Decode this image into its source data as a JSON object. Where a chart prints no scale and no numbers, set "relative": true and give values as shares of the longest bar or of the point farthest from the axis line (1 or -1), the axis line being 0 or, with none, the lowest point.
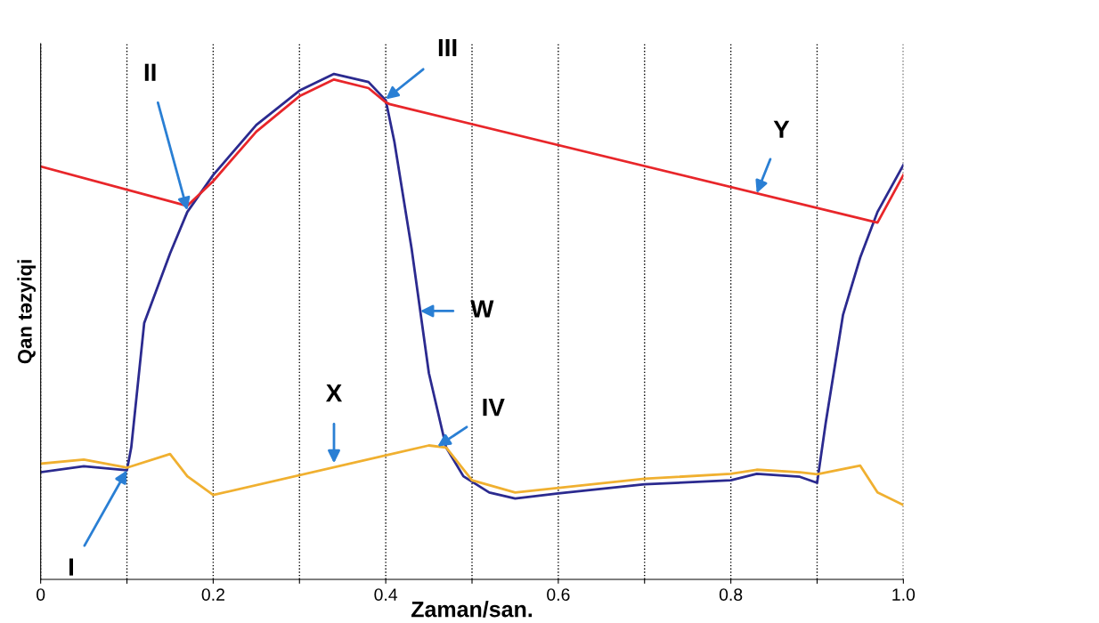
{
  "chart_data": {
    "type": "line",
    "relative": true,
    "xlabel": "Zaman/san.",
    "ylabel": "Qan təzyiqi",
    "xlim": [
      0,
      1.0
    ],
    "xticks": [
      0,
      {
        "value": 0.1,
        "label": null
      },
      0.2,
      {
        "value": 0.3,
        "label": null
      },
      0.4,
      {
        "value": 0.5,
        "label": null
      },
      0.6,
      {
        "value": 0.7,
        "label": null
      },
      0.8,
      {
        "value": 0.9,
        "label": null
      },
      {
        "value": 1.0,
        "label": "1.0"
      }
    ],
    "grid": "x",
    "legend": false,
    "marker": "none",
    "line_style": "solid",
    "series": [
      {
        "color": "#2b2a8f",
        "x": [
          0,
          0.05,
          0.1,
          0.105,
          0.12,
          0.15,
          0.17,
          0.2,
          0.25,
          0.3,
          0.34,
          0.38,
          0.4,
          0.41,
          0.43,
          0.45,
          0.47,
          0.49,
          0.52,
          0.55,
          0.6,
          0.7,
          0.8,
          0.83,
          0.88,
          0.9,
          0.91,
          0.93,
          0.95,
          0.97,
          1.0
        ],
        "values": [
          0.212,
          0.224,
          0.216,
          0.261,
          0.507,
          0.645,
          0.727,
          0.8,
          0.899,
          0.967,
          1.0,
          0.984,
          0.948,
          0.866,
          0.654,
          0.408,
          0.261,
          0.204,
          0.172,
          0.16,
          0.17,
          0.188,
          0.196,
          0.209,
          0.203,
          0.191,
          0.31,
          0.523,
          0.637,
          0.727,
          0.82
        ]
      },
      {
        "color": "#e8262a",
        "x": [
          0,
          0.17,
          0.2,
          0.25,
          0.3,
          0.34,
          0.38,
          0.4,
          0.405,
          0.97,
          1.0
        ],
        "values": [
          0.817,
          0.739,
          0.788,
          0.886,
          0.956,
          0.989,
          0.972,
          0.944,
          0.94,
          0.706,
          0.8
        ]
      },
      {
        "color": "#f0b030",
        "x": [
          0,
          0.05,
          0.1,
          0.15,
          0.17,
          0.2,
          0.45,
          0.47,
          0.5,
          0.55,
          0.7,
          0.8,
          0.83,
          0.88,
          0.9,
          0.95,
          0.97,
          1.0
        ],
        "values": [
          0.229,
          0.237,
          0.221,
          0.248,
          0.204,
          0.167,
          0.265,
          0.261,
          0.196,
          0.172,
          0.199,
          0.209,
          0.217,
          0.212,
          0.208,
          0.225,
          0.172,
          0.147
        ]
      }
    ],
    "annotations": [
      {
        "text": "I",
        "x": 0.1,
        "y": 0.216
      },
      {
        "text": "II",
        "x": 0.17,
        "y": 0.73
      },
      {
        "text": "III",
        "x": 0.4,
        "y": 0.95
      },
      {
        "text": "IV",
        "x": 0.46,
        "y": 0.263
      },
      {
        "text": "W",
        "x": 0.44,
        "y": 0.531
      },
      {
        "text": "X",
        "x": 0.34,
        "y": 0.23
      },
      {
        "text": "Y",
        "x": 0.83,
        "y": 0.764
      }
    ]
  }
}
